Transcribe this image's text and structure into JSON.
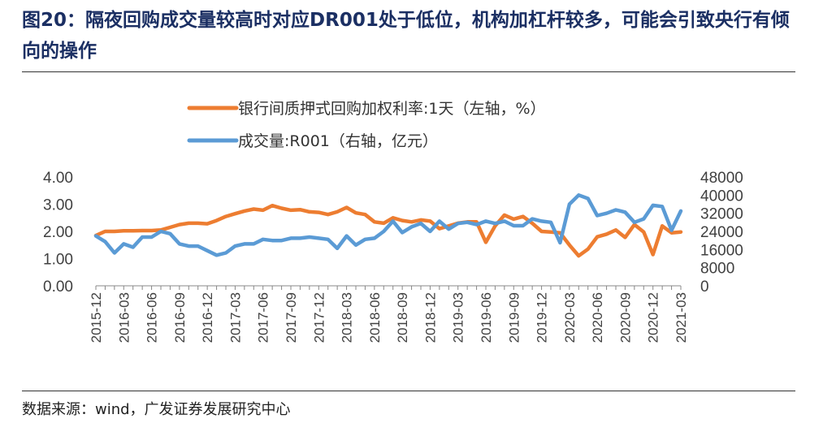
{
  "figure": {
    "label": "图20：",
    "title": "隔夜回购成交量较高时对应DR001处于低位，机构加杠杆较多，可能会引致央行有倾向的操作",
    "source": "数据来源：wind，广发证券发展研究中心"
  },
  "chart_data": {
    "type": "line",
    "title": "",
    "x": [
      "2015-12",
      "2016-01",
      "2016-02",
      "2016-03",
      "2016-04",
      "2016-05",
      "2016-06",
      "2016-07",
      "2016-08",
      "2016-09",
      "2016-10",
      "2016-11",
      "2016-12",
      "2017-01",
      "2017-02",
      "2017-03",
      "2017-04",
      "2017-05",
      "2017-06",
      "2017-07",
      "2017-08",
      "2017-09",
      "2017-10",
      "2017-11",
      "2017-12",
      "2018-01",
      "2018-02",
      "2018-03",
      "2018-04",
      "2018-05",
      "2018-06",
      "2018-07",
      "2018-08",
      "2018-09",
      "2018-10",
      "2018-11",
      "2018-12",
      "2019-01",
      "2019-02",
      "2019-03",
      "2019-04",
      "2019-05",
      "2019-06",
      "2019-07",
      "2019-08",
      "2019-09",
      "2019-10",
      "2019-11",
      "2019-12",
      "2020-01",
      "2020-02",
      "2020-03",
      "2020-04",
      "2020-05",
      "2020-06",
      "2020-07",
      "2020-08",
      "2020-09",
      "2020-10",
      "2020-11",
      "2020-12",
      "2021-01",
      "2021-02",
      "2021-03"
    ],
    "x_tick_labels": [
      "2015-12",
      "2016-03",
      "2016-06",
      "2016-09",
      "2016-12",
      "2017-03",
      "2017-06",
      "2017-09",
      "2017-12",
      "2018-03",
      "2018-06",
      "2018-09",
      "2018-12",
      "2019-03",
      "2019-06",
      "2019-09",
      "2019-12",
      "2020-03",
      "2020-06",
      "2020-09",
      "2020-12",
      "2021-03"
    ],
    "series": [
      {
        "name": "银行间质押式回购加权利率:1天（左轴，%）",
        "axis": "left",
        "color": "#ed7d31",
        "values": [
          1.85,
          2.0,
          2.0,
          2.02,
          2.02,
          2.03,
          2.03,
          2.05,
          2.15,
          2.25,
          2.3,
          2.3,
          2.28,
          2.4,
          2.55,
          2.65,
          2.75,
          2.82,
          2.78,
          2.95,
          2.85,
          2.78,
          2.8,
          2.72,
          2.7,
          2.62,
          2.72,
          2.88,
          2.68,
          2.62,
          2.35,
          2.3,
          2.5,
          2.4,
          2.35,
          2.42,
          2.38,
          2.1,
          2.2,
          2.3,
          2.35,
          2.35,
          1.6,
          2.2,
          2.6,
          2.45,
          2.55,
          2.3,
          2.0,
          1.98,
          1.95,
          1.5,
          1.1,
          1.35,
          1.8,
          1.9,
          2.05,
          1.78,
          2.25,
          1.98,
          1.15,
          2.2,
          1.95,
          1.98
        ]
      },
      {
        "name": "成交量:R001（右轴，亿元）",
        "axis": "right",
        "color": "#5b9bd5",
        "values": [
          22000,
          19500,
          14500,
          18500,
          17000,
          21500,
          21500,
          24000,
          23000,
          18500,
          17500,
          17500,
          15500,
          13500,
          14500,
          17500,
          18500,
          18500,
          20500,
          20000,
          20000,
          21000,
          21000,
          21500,
          21000,
          20500,
          16500,
          22000,
          18000,
          20500,
          21000,
          24000,
          28500,
          23500,
          26000,
          27500,
          24000,
          28500,
          25000,
          27500,
          28000,
          27000,
          28500,
          27500,
          28500,
          26500,
          26500,
          29500,
          28500,
          28000,
          19000,
          36000,
          40000,
          38500,
          31000,
          32000,
          33500,
          32500,
          28000,
          29500,
          35500,
          35000,
          24500,
          33000
        ]
      }
    ],
    "y_left": {
      "ylim": [
        0,
        4.0
      ],
      "ticks": [
        "4.00",
        "3.00",
        "2.00",
        "1.00",
        "0.00"
      ]
    },
    "y_right": {
      "ylim": [
        0,
        48000
      ],
      "ticks": [
        "48000",
        "40000",
        "32000",
        "24000",
        "16000",
        "8000",
        "0"
      ]
    },
    "legend": "top-center",
    "grid": false
  }
}
